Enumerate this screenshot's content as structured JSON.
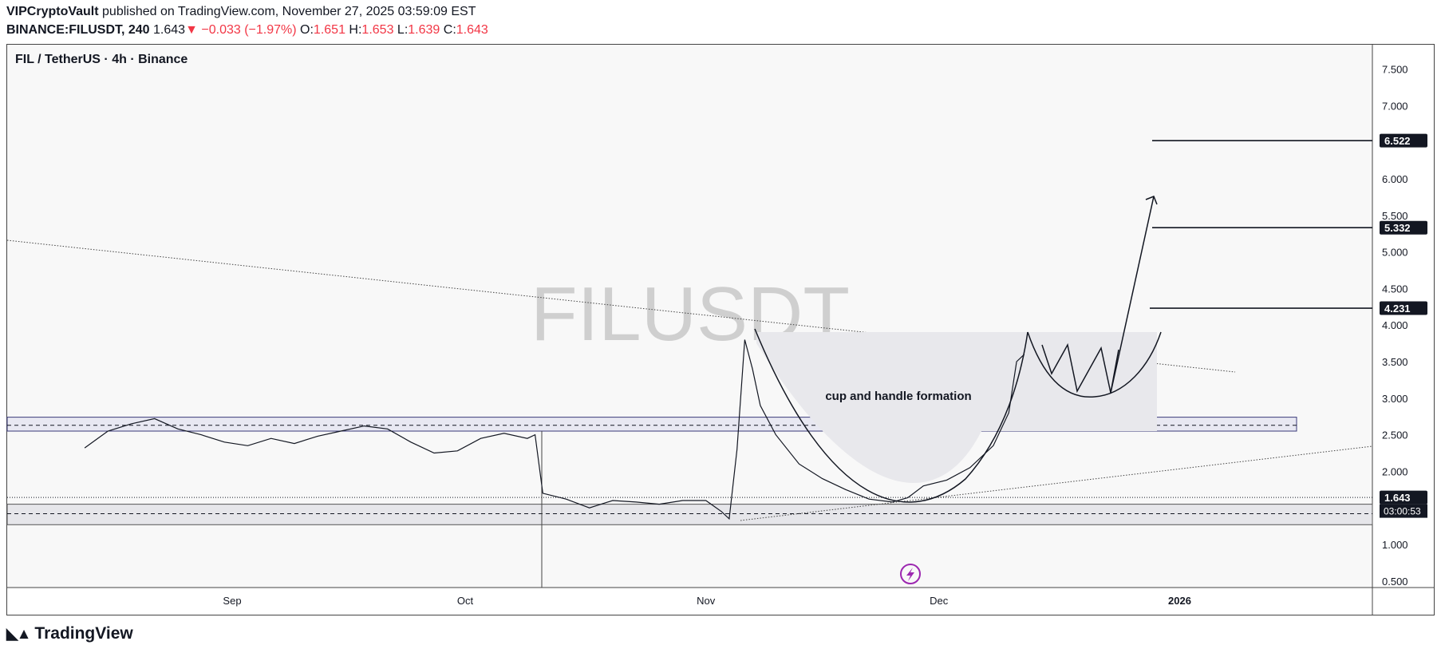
{
  "header": {
    "author": "VIPCryptoVault",
    "published": "published on TradingView.com, November 27, 2025 03:59:09 EST",
    "symbol": "BINANCE:FILUSDT, 240",
    "last": "1.643",
    "change_arrow": "▼",
    "change": "−0.033 (−1.97%)",
    "o_label": "O:",
    "o_value": "1.651",
    "h_label": "H:",
    "h_value": "1.653",
    "l_label": "L:",
    "l_value": "1.639",
    "c_label": "C:",
    "c_value": "1.643"
  },
  "pane_title": "FIL / TetherUS · 4h · Binance",
  "watermark": "FILUSDT",
  "footer": {
    "brand": "TradingView",
    "brand_icon": "tradingview-logo-icon"
  },
  "colors": {
    "up": "#131722",
    "down": "#f23645",
    "pattern": "#6f6fa8",
    "zone": "#e6e6ee"
  },
  "chart_data": {
    "type": "line",
    "symbol": "FILUSDT",
    "timeframe": "4h",
    "xlabel": "",
    "ylabel": "",
    "x_ticks": [
      "Sep",
      "Oct",
      "Nov",
      "Dec",
      "2026"
    ],
    "y_ticks": [
      7.5,
      7.0,
      6.5,
      6.0,
      5.5,
      5.0,
      4.5,
      4.0,
      3.5,
      3.0,
      2.5,
      2.0,
      1.5,
      1.0,
      0.5
    ],
    "y_tick_labels": [
      "7.500",
      "7.000",
      "",
      "6.000",
      "5.500",
      "5.000",
      "4.500",
      "4.000",
      "3.500",
      "3.000",
      "2.500",
      "2.000",
      "",
      "1.000",
      "0.500"
    ],
    "ylim": [
      0.4,
      7.9
    ],
    "grid": false,
    "price_tags": [
      {
        "value": "6.522"
      },
      {
        "value": "5.332"
      },
      {
        "value": "4.231"
      },
      {
        "value": "1.643",
        "countdown": "03:00:53"
      }
    ],
    "annotations": [
      {
        "text": "cup and handle formation"
      }
    ],
    "series": [
      {
        "x": [
          "2025-08-13",
          "2025-08-16",
          "2025-08-19",
          "2025-08-22",
          "2025-08-25",
          "2025-08-28",
          "2025-08-31",
          "2025-09-03",
          "2025-09-06",
          "2025-09-09",
          "2025-09-12",
          "2025-09-15",
          "2025-09-18",
          "2025-09-21",
          "2025-09-24",
          "2025-09-27",
          "2025-09-30",
          "2025-10-03",
          "2025-10-06",
          "2025-10-09",
          "2025-10-10",
          "2025-10-11",
          "2025-10-14",
          "2025-10-17",
          "2025-10-20",
          "2025-10-23",
          "2025-10-26",
          "2025-10-29",
          "2025-11-01",
          "2025-11-03",
          "2025-11-04",
          "2025-11-05",
          "2025-11-06",
          "2025-11-07",
          "2025-11-08",
          "2025-11-10",
          "2025-11-13",
          "2025-11-16",
          "2025-11-19",
          "2025-11-22",
          "2025-11-25",
          "2025-11-27",
          "2025-11-29",
          "2025-12-02",
          "2025-12-05",
          "2025-12-08",
          "2025-12-10",
          "2025-12-11",
          "2025-12-12"
        ],
        "y": [
          2.32,
          2.55,
          2.65,
          2.72,
          2.58,
          2.5,
          2.4,
          2.35,
          2.45,
          2.38,
          2.48,
          2.55,
          2.62,
          2.58,
          2.4,
          2.25,
          2.28,
          2.45,
          2.52,
          2.45,
          2.5,
          1.7,
          1.62,
          1.5,
          1.6,
          1.58,
          1.55,
          1.6,
          1.6,
          1.45,
          1.35,
          2.3,
          3.8,
          3.4,
          2.9,
          2.5,
          2.1,
          1.9,
          1.75,
          1.62,
          1.58,
          1.64,
          1.8,
          1.88,
          2.05,
          2.35,
          2.8,
          3.5,
          3.6
        ]
      }
    ]
  }
}
